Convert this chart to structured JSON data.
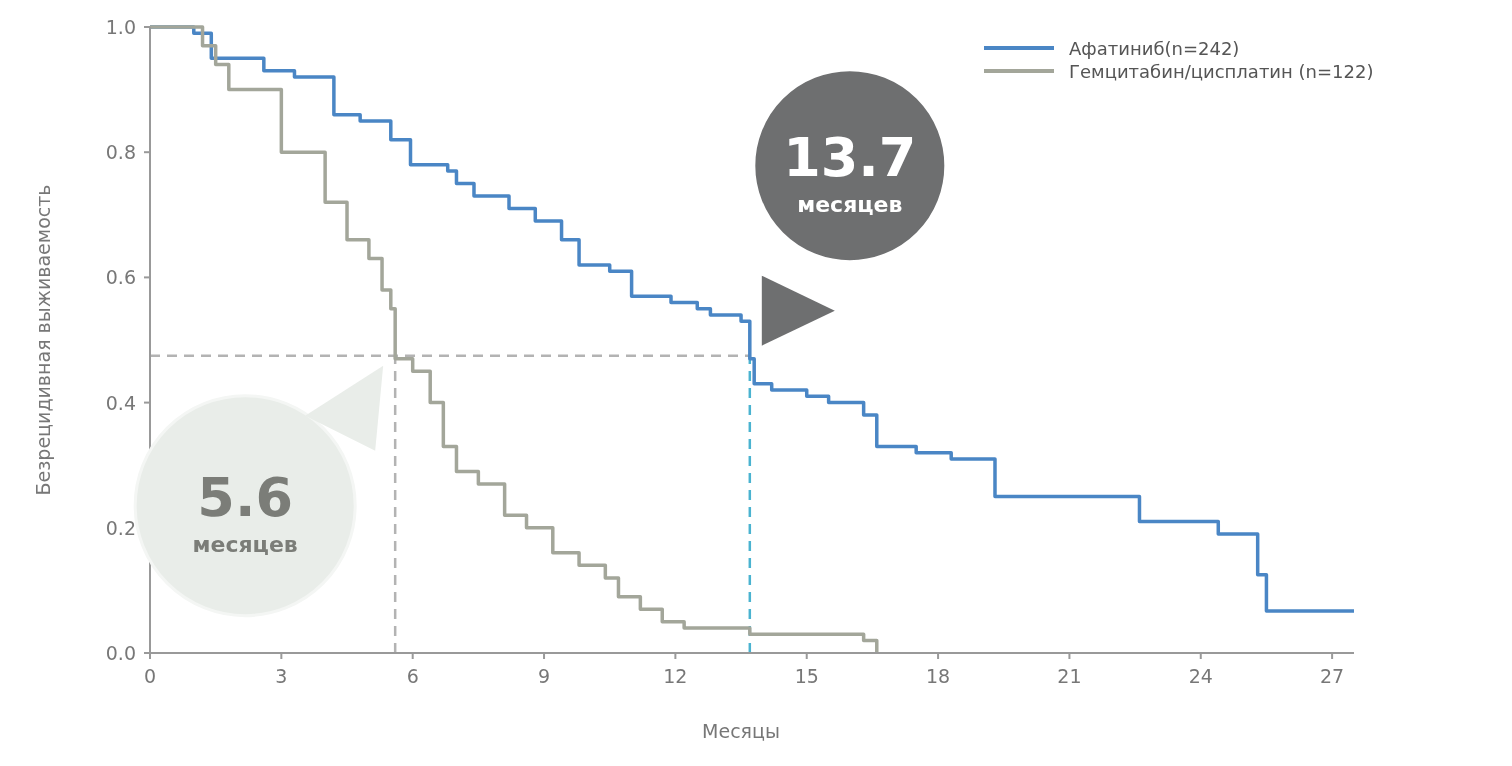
{
  "chart_data": {
    "type": "step",
    "xlabel": "Месяцы",
    "ylabel": "Безрецидивная выживаемость",
    "xlim": [
      0,
      27.5
    ],
    "ylim": [
      0,
      1
    ],
    "xticks": [
      0,
      3,
      6,
      9,
      12,
      15,
      18,
      21,
      24,
      27
    ],
    "yticks": [
      {
        "value": 0,
        "label": "0.0"
      },
      {
        "value": 0.2,
        "label": "0.2"
      },
      {
        "value": 0.4,
        "label": "0.4"
      },
      {
        "value": 0.6,
        "label": "0.6"
      },
      {
        "value": 0.8,
        "label": "0.8"
      },
      {
        "value": 1,
        "label": "1.0"
      }
    ],
    "grid": false,
    "legend": "top right",
    "line_style": "solid",
    "series": [
      {
        "name": "Афатиниб(n=242)",
        "color": "#4a86c5",
        "x": [
          0,
          1,
          1.4,
          2.6,
          3.3,
          4.2,
          4.8,
          5.5,
          5.95,
          6.8,
          7.0,
          7.4,
          8.2,
          8.8,
          9.4,
          9.8,
          10.5,
          11,
          11.9,
          12.5,
          12.8,
          13.5,
          13.7,
          13.8,
          14.2,
          15,
          15.5,
          16.3,
          16.6,
          17.5,
          18.3,
          19.3,
          22.6,
          24.4,
          25.3,
          25.5,
          27.5
        ],
        "values": [
          1,
          0.99,
          0.95,
          0.93,
          0.92,
          0.86,
          0.85,
          0.82,
          0.78,
          0.77,
          0.75,
          0.73,
          0.71,
          0.69,
          0.66,
          0.62,
          0.61,
          0.57,
          0.56,
          0.55,
          0.54,
          0.53,
          0.47,
          0.43,
          0.42,
          0.41,
          0.4,
          0.38,
          0.33,
          0.32,
          0.31,
          0.25,
          0.21,
          0.19,
          0.125,
          0.067,
          0.067
        ]
      },
      {
        "name": "Гемцитабин/цисплатин (n=122)",
        "color": "#a3a69a",
        "x": [
          0,
          1.2,
          1.5,
          1.8,
          3,
          4,
          4.5,
          5,
          5.3,
          5.5,
          5.6,
          6,
          6.4,
          6.7,
          7,
          7.5,
          8.1,
          8.6,
          9.2,
          9.8,
          10.4,
          10.7,
          11.2,
          11.7,
          12.2,
          13.7,
          16.3,
          16.6
        ],
        "values": [
          1,
          0.97,
          0.94,
          0.9,
          0.8,
          0.72,
          0.66,
          0.63,
          0.58,
          0.55,
          0.47,
          0.45,
          0.4,
          0.33,
          0.29,
          0.27,
          0.22,
          0.2,
          0.16,
          0.14,
          0.12,
          0.09,
          0.07,
          0.05,
          0.04,
          0.03,
          0.02,
          0
        ]
      }
    ],
    "ref_lines": [
      {
        "axis": "y",
        "value": 0.475,
        "color": "#b3b3b3",
        "line_style": "dashed"
      },
      {
        "axis": "x",
        "value": 5.6,
        "color": "#b3b3b3",
        "line_style": "dashed"
      },
      {
        "axis": "x",
        "value": 13.7,
        "color": "#4ab3d0",
        "line_style": "dashed"
      }
    ],
    "annotations": [
      {
        "text": "13.7\nмесяцев",
        "x": 13.7,
        "y": 0.475
      },
      {
        "text": "5.6\nмесяцев",
        "x": 5.6,
        "y": 0.475
      }
    ]
  }
}
